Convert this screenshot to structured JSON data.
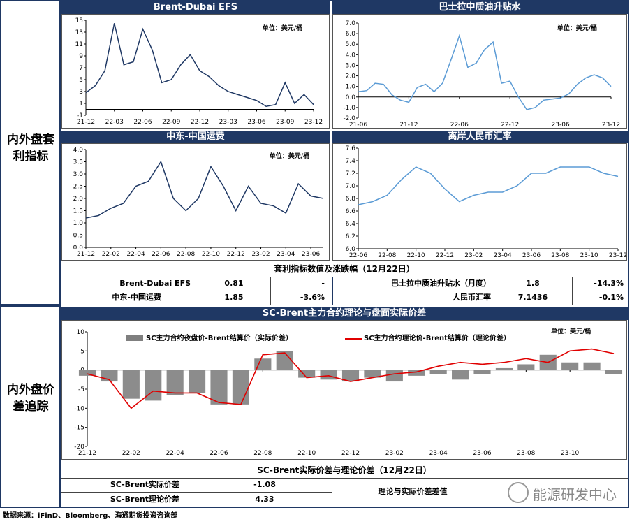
{
  "sections": {
    "arb_label": "内外盘套利指标",
    "spread_label": "内外盘价差追踪"
  },
  "charts": {
    "c1": {
      "title": "Brent-Dubai EFS",
      "unit": "单位：美元/桶"
    },
    "c2": {
      "title": "巴士拉中质油升贴水",
      "unit": "单位：美元/桶"
    },
    "c3": {
      "title": "中东-中国运费",
      "unit": "单位：美元/桶"
    },
    "c4": {
      "title": "离岸人民币汇率",
      "unit": ""
    },
    "c5": {
      "title": "SC-Brent主力合约理论与盘面实际价差",
      "unit": "单位：美元/桶",
      "legend_bar": "SC主力合约夜盘价-Brent结算价（实际价差）",
      "legend_line": "SC主力合约理论价-Brent结算价（理论价差）"
    }
  },
  "table1": {
    "title": "套利指标数值及涨跌幅（12月22日）",
    "rows": [
      [
        "Brent-Dubai EFS",
        "0.81",
        "-",
        "巴士拉中质油升贴水（月度）",
        "1.8",
        "-14.3%"
      ],
      [
        "中东-中国运费",
        "1.85",
        "-3.6%",
        "人民币汇率",
        "7.1436",
        "-0.1%"
      ]
    ]
  },
  "table2": {
    "title": "SC-Brent实际价差与理论价差（12月22日）",
    "rows": [
      [
        "SC-Brent实际价差",
        "-1.08"
      ],
      [
        "SC-Brent理论价差",
        "4.33"
      ]
    ],
    "right_label": "理论与实际价差差值",
    "watermark": "能源研发中心"
  },
  "footer": "数据来源：iFinD、Bloomberg、海通期货投资咨询部",
  "chart_data": [
    {
      "type": "line",
      "title": "Brent-Dubai EFS",
      "ylim": [
        -1,
        15
      ],
      "yticks": [
        -1,
        1,
        3,
        5,
        7,
        9,
        11,
        13,
        15
      ],
      "xticks": [
        "21-12",
        "22-03",
        "22-06",
        "22-09",
        "22-12",
        "23-03",
        "23-06",
        "23-09",
        "23-12"
      ],
      "x": [
        "21-12",
        "22-01",
        "22-02",
        "22-03",
        "22-04",
        "22-05",
        "22-06",
        "22-07",
        "22-08",
        "22-09",
        "22-10",
        "22-11",
        "22-12",
        "23-01",
        "23-02",
        "23-03",
        "23-04",
        "23-05",
        "23-06",
        "23-07",
        "23-08",
        "23-09",
        "23-10",
        "23-11",
        "23-12"
      ],
      "values": [
        2.8,
        4.0,
        6.5,
        14.5,
        7.5,
        8.0,
        13.5,
        10.0,
        4.5,
        5.0,
        7.5,
        9.2,
        6.5,
        5.5,
        4.0,
        3.0,
        2.5,
        2.0,
        1.5,
        0.5,
        0.8,
        4.5,
        1.0,
        2.5,
        0.8
      ]
    },
    {
      "type": "line",
      "title": "巴士拉中质油升贴水",
      "ylim": [
        -2.0,
        7.0
      ],
      "yticks": [
        -2.0,
        -1.0,
        0.0,
        1.0,
        2.0,
        3.0,
        4.0,
        5.0,
        6.0,
        7.0
      ],
      "xticks": [
        "21-06",
        "21-12",
        "22-06",
        "22-12",
        "23-06",
        "23-12"
      ],
      "x": [
        "21-06",
        "21-07",
        "21-08",
        "21-09",
        "21-10",
        "21-11",
        "21-12",
        "22-01",
        "22-02",
        "22-03",
        "22-04",
        "22-05",
        "22-06",
        "22-07",
        "22-08",
        "22-09",
        "22-10",
        "22-11",
        "22-12",
        "23-01",
        "23-02",
        "23-03",
        "23-04",
        "23-05",
        "23-06",
        "23-07",
        "23-08",
        "23-09",
        "23-10",
        "23-11",
        "23-12"
      ],
      "values": [
        0.5,
        0.6,
        1.3,
        1.2,
        0.2,
        -0.3,
        -0.5,
        0.9,
        1.2,
        0.5,
        1.3,
        3.5,
        5.8,
        2.8,
        3.2,
        4.5,
        5.2,
        1.3,
        1.5,
        0.0,
        -1.2,
        -1.0,
        -0.3,
        -0.2,
        -0.1,
        0.3,
        1.2,
        1.8,
        2.1,
        1.8,
        1.0
      ]
    },
    {
      "type": "line",
      "title": "中东-中国运费",
      "ylim": [
        0.0,
        4.0
      ],
      "yticks": [
        0.0,
        0.5,
        1.0,
        1.5,
        2.0,
        2.5,
        3.0,
        3.5,
        4.0
      ],
      "xticks": [
        "21-12",
        "22-02",
        "22-04",
        "22-06",
        "22-08",
        "22-10",
        "22-12",
        "23-02",
        "23-04",
        "23-06"
      ],
      "x": [
        "21-12",
        "22-01",
        "22-02",
        "22-03",
        "22-04",
        "22-05",
        "22-06",
        "22-07",
        "22-08",
        "22-09",
        "22-10",
        "22-11",
        "22-12",
        "23-01",
        "23-02",
        "23-03",
        "23-04",
        "23-05",
        "23-06",
        "23-07"
      ],
      "values": [
        1.2,
        1.3,
        1.6,
        1.8,
        2.5,
        2.7,
        3.5,
        2.0,
        1.5,
        2.0,
        3.3,
        2.5,
        1.5,
        2.5,
        1.8,
        1.7,
        1.4,
        2.6,
        2.1,
        2.0
      ]
    },
    {
      "type": "line",
      "title": "离岸人民币汇率",
      "ylim": [
        6.0,
        7.6
      ],
      "yticks": [
        6.0,
        6.2,
        6.4,
        6.6,
        6.8,
        7.0,
        7.2,
        7.4,
        7.6
      ],
      "xticks": [
        "22-06",
        "22-08",
        "22-10",
        "22-12",
        "23-02",
        "23-04",
        "23-06",
        "23-08",
        "23-10",
        "23-12"
      ],
      "x": [
        "22-06",
        "22-07",
        "22-08",
        "22-09",
        "22-10",
        "22-11",
        "22-12",
        "23-01",
        "23-02",
        "23-03",
        "23-04",
        "23-05",
        "23-06",
        "23-07",
        "23-08",
        "23-09",
        "23-10",
        "23-11",
        "23-12"
      ],
      "values": [
        6.7,
        6.75,
        6.85,
        7.1,
        7.3,
        7.2,
        6.95,
        6.75,
        6.85,
        6.9,
        6.9,
        7.0,
        7.2,
        7.2,
        7.3,
        7.3,
        7.3,
        7.2,
        7.15
      ]
    },
    {
      "type": "bar+line",
      "title": "SC-Brent主力合约理论与盘面实际价差",
      "ylim": [
        -20,
        10
      ],
      "yticks": [
        -20,
        -15,
        -10,
        -5,
        0,
        5,
        10
      ],
      "xticks": [
        "21-12",
        "22-02",
        "22-04",
        "22-06",
        "22-08",
        "22-10",
        "22-12",
        "23-02",
        "23-04",
        "23-06",
        "23-08",
        "23-10"
      ],
      "x": [
        "21-12",
        "22-01",
        "22-02",
        "22-03",
        "22-04",
        "22-05",
        "22-06",
        "22-07",
        "22-08",
        "22-09",
        "22-10",
        "22-11",
        "22-12",
        "23-01",
        "23-02",
        "23-03",
        "23-04",
        "23-05",
        "23-06",
        "23-07",
        "23-08",
        "23-09",
        "23-10",
        "23-11",
        "23-12"
      ],
      "series": [
        {
          "name": "SC主力合约夜盘价-Brent结算价（实际价差）",
          "values": [
            -1.5,
            -3.0,
            -7.5,
            -8.0,
            -6.5,
            -6.0,
            -9.0,
            -9.0,
            3.0,
            5.0,
            -2.0,
            -2.5,
            -3.0,
            -2.0,
            -3.0,
            -1.5,
            -1.0,
            -2.5,
            -1.0,
            0.5,
            1.5,
            4.0,
            2.0,
            2.0,
            -1.08
          ]
        },
        {
          "name": "SC主力合约理论价-Brent结算价（理论价差）",
          "values": [
            -1.0,
            -2.5,
            -10.0,
            -5.5,
            -6.0,
            -6.0,
            -8.5,
            -9.0,
            4.0,
            4.5,
            -2.0,
            -1.5,
            -3.0,
            -2.0,
            -1.0,
            -0.5,
            1.0,
            2.0,
            1.5,
            2.0,
            3.0,
            2.0,
            5.0,
            5.5,
            4.33
          ]
        }
      ]
    }
  ]
}
